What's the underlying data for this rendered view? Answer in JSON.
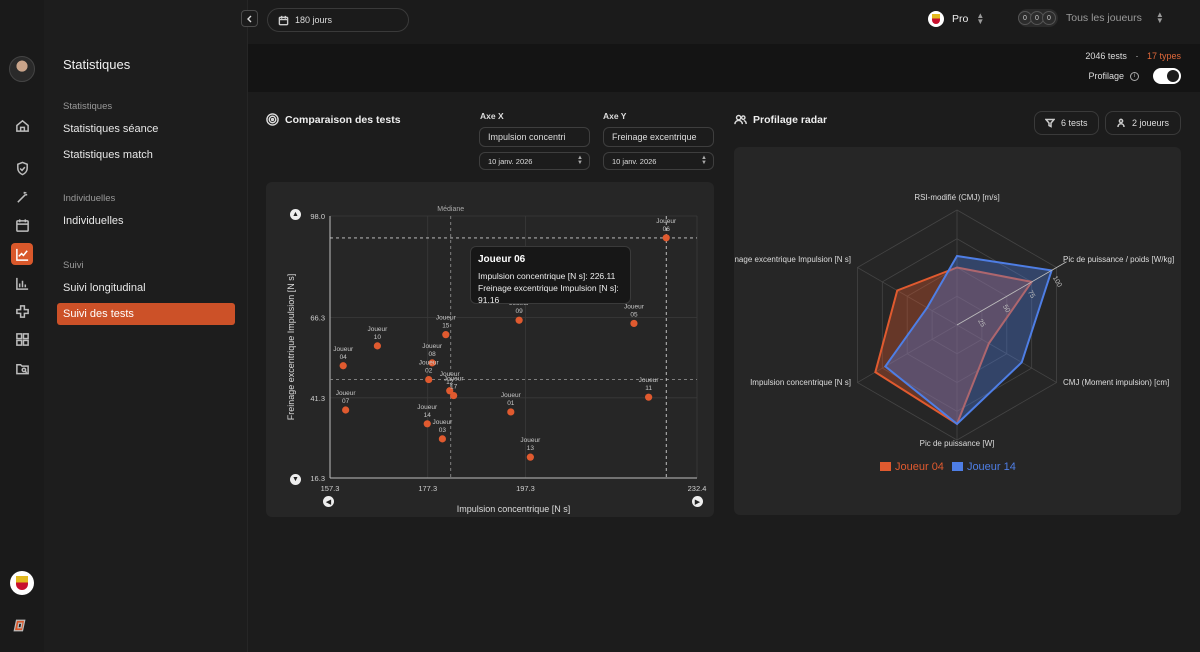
{
  "nav": {
    "icons": [
      "home-icon",
      "shield-icon",
      "magic-wand-icon",
      "calendar-icon",
      "line-chart-icon",
      "bar-chart-icon",
      "medical-cross-icon",
      "grid-icon",
      "folder-search-icon"
    ],
    "active_index": 4
  },
  "sidebar": {
    "title": "Statistiques",
    "sections": [
      {
        "label": "Statistiques",
        "items": [
          "Statistiques séance",
          "Statistiques match"
        ]
      },
      {
        "label": "Individuelles",
        "items": [
          "Individuelles"
        ]
      },
      {
        "label": "Suivi",
        "items": [
          "Suivi longitudinal",
          "Suivi des tests"
        ]
      }
    ],
    "active_item": "Suivi des tests"
  },
  "header": {
    "period": "180 jours",
    "team": "Pro",
    "players_filter": "Tous les joueurs",
    "players_badges": [
      "0",
      "0",
      "0"
    ]
  },
  "summary": {
    "tests": "2046 tests",
    "separator": "·",
    "types": "17 types",
    "profiling_label": "Profilage",
    "profiling_on": true
  },
  "comparison": {
    "title": "Comparaison des tests",
    "axis_x_label": "Axe X",
    "axis_y_label": "Axe Y",
    "axis_x_value": "Impulsion concentri",
    "axis_y_value": "Freinage excentrique",
    "date_x": "10 janv. 2026",
    "date_y": "10 janv. 2026",
    "median_label": "Médiane",
    "tooltip": {
      "title": "Joueur 06",
      "line1": "Impulsion concentrique [N s]: 226.11",
      "line2": "Freinage excentrique Impulsion [N s]: 91.16"
    }
  },
  "radar": {
    "title": "Profilage radar",
    "tests_button": "6 tests",
    "players_button": "2 joueurs"
  },
  "chart_data": [
    {
      "type": "scatter",
      "title": "",
      "xlabel": "Impulsion concentrique [N s]",
      "ylabel": "Freinage excentrique Impulsion [N s]",
      "xlim": [
        157.3,
        232.4
      ],
      "ylim": [
        16.3,
        98.0
      ],
      "xticks": [
        "157.3",
        "177.3",
        "197.3",
        "232.4"
      ],
      "yticks": [
        "98.0",
        "66.3",
        "41.3",
        "16.3"
      ],
      "median": {
        "x": 182.0,
        "y": 47.0
      },
      "highlight": {
        "x": 226.11,
        "y": 91.16
      },
      "color": "#e05a2f",
      "points": [
        {
          "label": [
            "Joueur",
            "06"
          ],
          "x": 226.1,
          "y": 91.2
        },
        {
          "label": [
            "Joueur",
            "09"
          ],
          "x": 196.0,
          "y": 65.5
        },
        {
          "label": [
            "Joueur",
            "05"
          ],
          "x": 219.5,
          "y": 64.5
        },
        {
          "label": [
            "Joueur",
            "15"
          ],
          "x": 181.0,
          "y": 61.0
        },
        {
          "label": [
            "Joueur",
            "10"
          ],
          "x": 167.0,
          "y": 57.5
        },
        {
          "label": [
            "Joueur",
            "08"
          ],
          "x": 178.2,
          "y": 52.2
        },
        {
          "label": [
            "Joueur",
            "04"
          ],
          "x": 160.0,
          "y": 51.3
        },
        {
          "label": [
            "Joueur",
            "02"
          ],
          "x": 177.5,
          "y": 47.0
        },
        {
          "label": [
            "Joueur",
            "12"
          ],
          "x": 181.8,
          "y": 43.5
        },
        {
          "label": [
            "Joueur",
            "17"
          ],
          "x": 182.6,
          "y": 42.0
        },
        {
          "label": [
            "Joueur",
            "11"
          ],
          "x": 222.5,
          "y": 41.5
        },
        {
          "label": [
            "Joueur",
            "01"
          ],
          "x": 194.3,
          "y": 36.9
        },
        {
          "label": [
            "Joueur",
            "07"
          ],
          "x": 160.5,
          "y": 37.5
        },
        {
          "label": [
            "Joueur",
            "14"
          ],
          "x": 177.2,
          "y": 33.2
        },
        {
          "label": [
            "Joueur",
            "03"
          ],
          "x": 180.3,
          "y": 28.5
        },
        {
          "label": [
            "Joueur",
            "13"
          ],
          "x": 198.3,
          "y": 22.8
        }
      ]
    },
    {
      "type": "radar",
      "axes": [
        "RSI-modifié (CMJ) [m/s]",
        "Pic de puissance / poids [W/kg]",
        "CMJ (Moment impulsion) [cm]",
        "Pic de puissance [W]",
        "Impulsion concentrique [N s]",
        "Freinage excentrique Impulsion [N s]"
      ],
      "scale_ticks": [
        "25",
        "50",
        "75",
        "100"
      ],
      "series": [
        {
          "name": "Joueur 04",
          "color": "#e05a2f",
          "values": [
            50,
            75,
            32,
            86,
            82,
            60
          ]
        },
        {
          "name": "Joueur 14",
          "color": "#4e7ee5",
          "values": [
            60,
            95,
            65,
            86,
            72,
            30
          ]
        }
      ]
    }
  ]
}
